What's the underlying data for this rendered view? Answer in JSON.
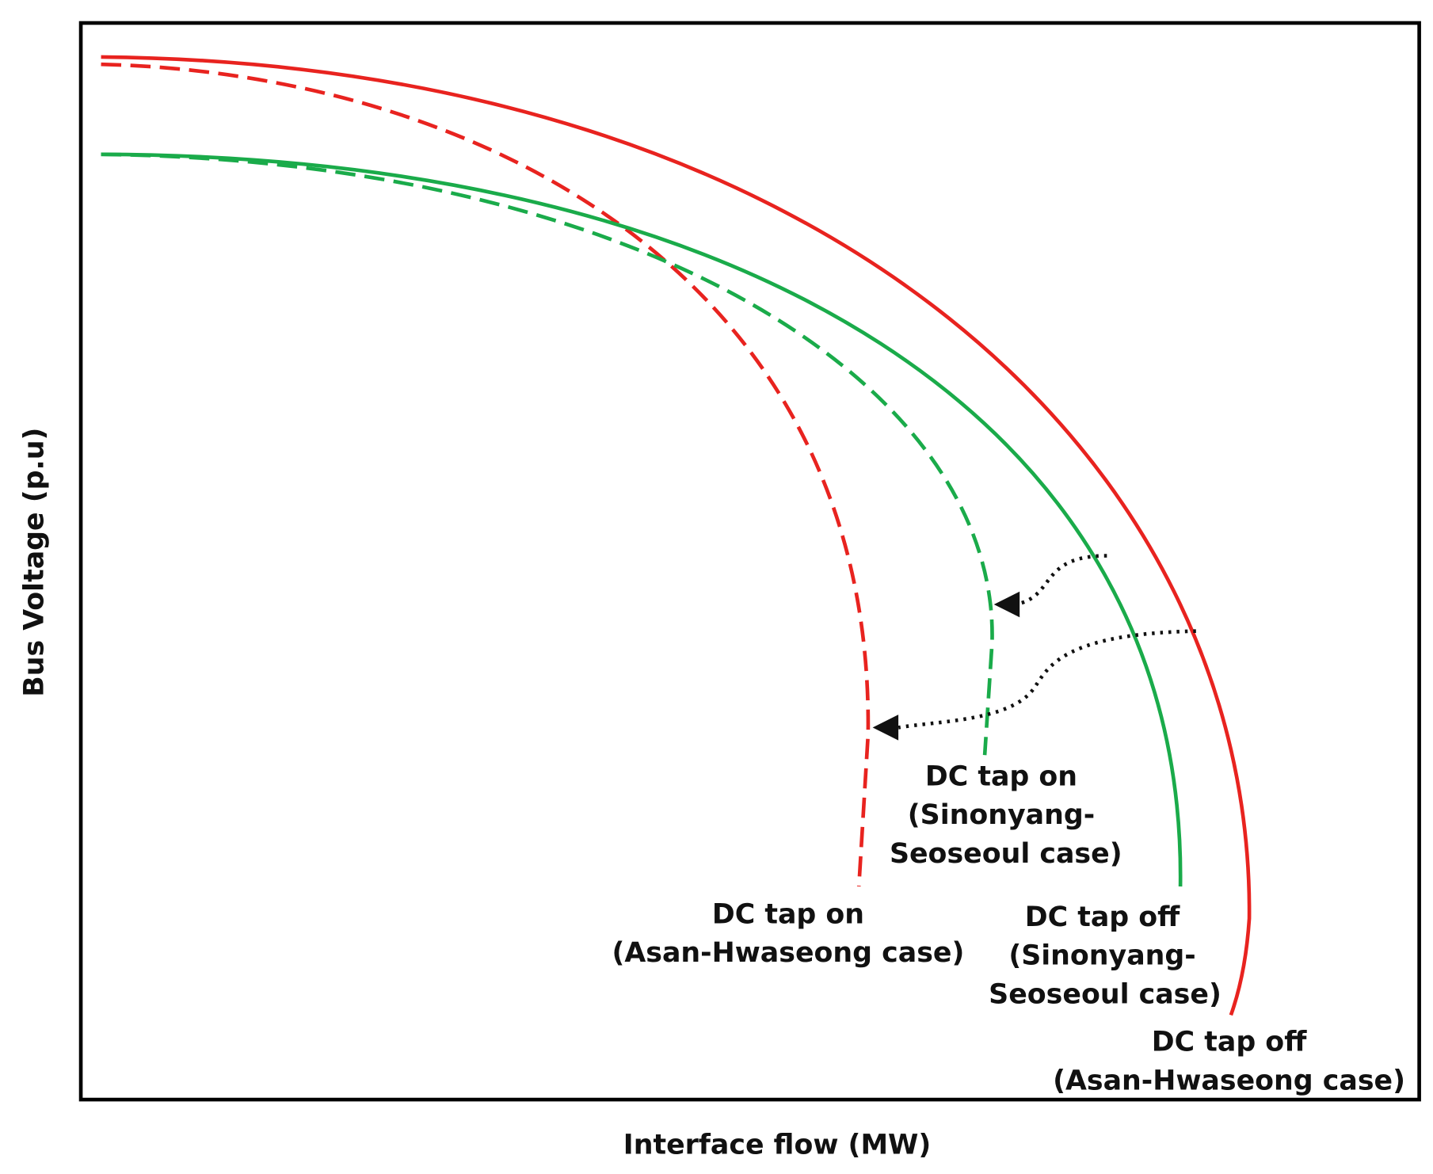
{
  "axes": {
    "x_label": "Interface flow (MW)",
    "y_label": "Bus Voltage (p.u)"
  },
  "curves": [
    {
      "lines": [
        "DC tap on",
        "(Sinonyang-",
        "Seoseoul case)"
      ]
    },
    {
      "lines": [
        "DC tap on",
        "(Asan-Hwaseong case)"
      ]
    },
    {
      "lines": [
        "DC tap off",
        "(Sinonyang-",
        "Seoseoul case)"
      ]
    },
    {
      "lines": [
        "DC tap off",
        "(Asan-Hwaseong case)"
      ]
    }
  ]
}
